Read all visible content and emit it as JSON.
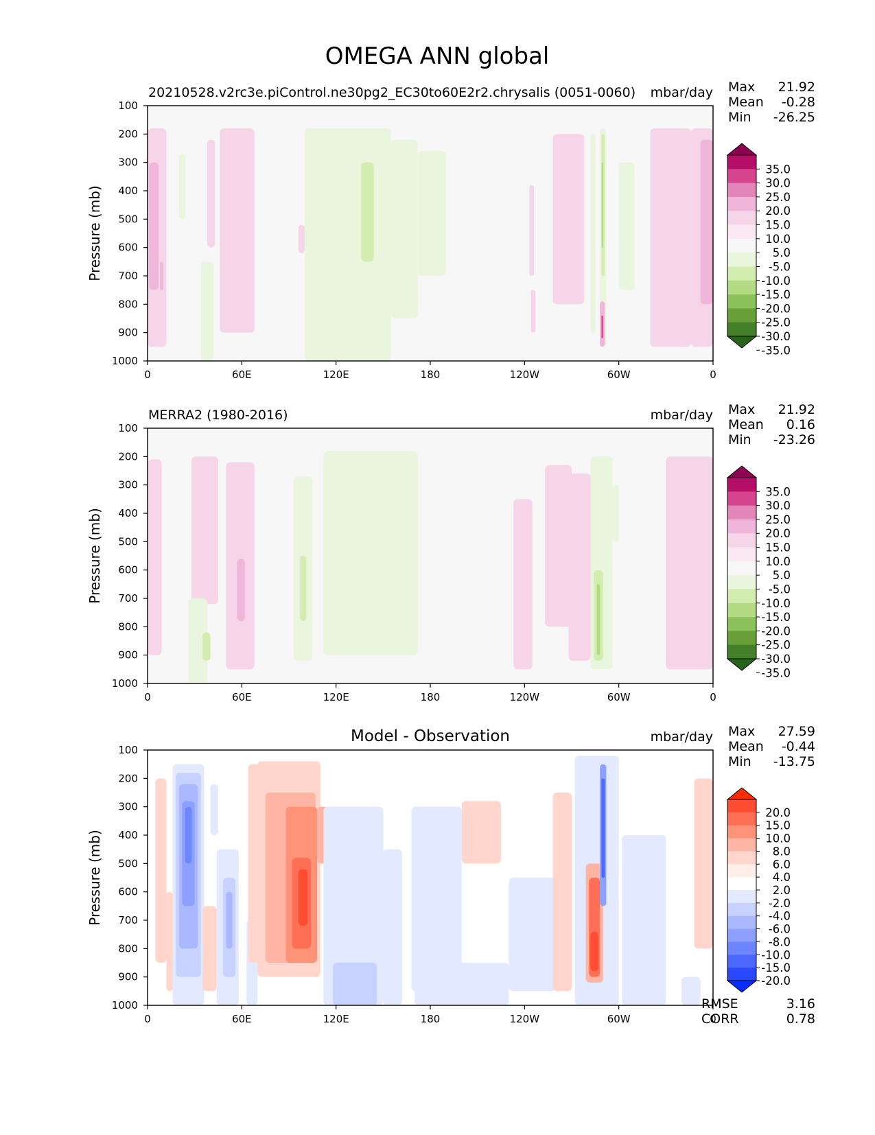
{
  "page": {
    "title": "OMEGA ANN global"
  },
  "palettes": {
    "pink_green": [
      "#8e0152",
      "#b50f6a",
      "#d6438e",
      "#e285b8",
      "#f0b6da",
      "#f6d5e9",
      "#f9e8f1",
      "#f7f7f7",
      "#eaf5dd",
      "#d3ecb0",
      "#b2db84",
      "#8cc25b",
      "#689f38",
      "#44802a",
      "#276419"
    ],
    "red_blue": [
      "#ff2a00",
      "#ff4d33",
      "#ff6f55",
      "#ff9377",
      "#ffb5a3",
      "#ffd5cc",
      "#ffeee9",
      "#ffffff",
      "#e3e9ff",
      "#c8d2ff",
      "#aab8ff",
      "#8da0ff",
      "#6d85ff",
      "#4d68ff",
      "#2a48ff",
      "#0a2dff"
    ]
  },
  "chart_data": [
    {
      "type": "heatmap",
      "title": "",
      "subtitle_left": "20210528.v2rc3e.piControl.ne30pg2_EC30to60E2r2.chrysalis (0051-0060)",
      "units": "mbar/day",
      "ylabel": "Pressure (mb)",
      "xlabel": "",
      "x_ticks": [
        "0",
        "60E",
        "120E",
        "180",
        "120W",
        "60W",
        "0"
      ],
      "y_ticks": [
        "100",
        "200",
        "300",
        "400",
        "500",
        "600",
        "700",
        "800",
        "900",
        "1000"
      ],
      "ylim": [
        1000,
        100
      ],
      "xlim": [
        0,
        360
      ],
      "stats": {
        "Max": "21.92",
        "Mean": "-0.28",
        "Min": "-26.25"
      },
      "colorbar": {
        "palette": "pink_green",
        "extend": "both",
        "labels": [
          "35.0",
          "30.0",
          "25.0",
          "20.0",
          "15.0",
          "10.0",
          "5.0",
          "-5.0",
          "-10.0",
          "-15.0",
          "-20.0",
          "-25.0",
          "-30.0",
          "-35.0"
        ]
      },
      "regions": [
        {
          "lon": [
            0,
            12
          ],
          "p": [
            180,
            950
          ],
          "level": 10
        },
        {
          "lon": [
            1,
            7
          ],
          "p": [
            300,
            750
          ],
          "level": 15
        },
        {
          "lon": [
            8,
            10
          ],
          "p": [
            650,
            750
          ],
          "level": 15
        },
        {
          "lon": [
            38,
            43
          ],
          "p": [
            220,
            600
          ],
          "level": 10
        },
        {
          "lon": [
            46,
            68
          ],
          "p": [
            180,
            900
          ],
          "level": 10
        },
        {
          "lon": [
            64,
            68
          ],
          "p": [
            500,
            900
          ],
          "level": 10
        },
        {
          "lon": [
            20,
            24
          ],
          "p": [
            270,
            500
          ],
          "level": -10
        },
        {
          "lon": [
            34,
            42
          ],
          "p": [
            650,
            1000
          ],
          "level": -10
        },
        {
          "lon": [
            100,
            155
          ],
          "p": [
            180,
            1000
          ],
          "level": -10
        },
        {
          "lon": [
            155,
            172
          ],
          "p": [
            220,
            850
          ],
          "level": -10
        },
        {
          "lon": [
            172,
            190
          ],
          "p": [
            260,
            700
          ],
          "level": -10
        },
        {
          "lon": [
            136,
            144
          ],
          "p": [
            300,
            650
          ],
          "level": -15
        },
        {
          "lon": [
            100,
            102
          ],
          "p": [
            230,
            500
          ],
          "level": -10
        },
        {
          "lon": [
            96,
            100
          ],
          "p": [
            520,
            620
          ],
          "level": 10
        },
        {
          "lon": [
            258,
            278
          ],
          "p": [
            200,
            800
          ],
          "level": 10
        },
        {
          "lon": [
            243,
            246
          ],
          "p": [
            380,
            700
          ],
          "level": 10
        },
        {
          "lon": [
            244,
            247
          ],
          "p": [
            750,
            900
          ],
          "level": 10
        },
        {
          "lon": [
            282,
            285
          ],
          "p": [
            200,
            900
          ],
          "level": -10
        },
        {
          "lon": [
            288,
            292
          ],
          "p": [
            180,
            950
          ],
          "level": -10
        },
        {
          "lon": [
            289,
            291
          ],
          "p": [
            200,
            700
          ],
          "level": -15
        },
        {
          "lon": [
            289,
            290
          ],
          "p": [
            300,
            600
          ],
          "level": -20
        },
        {
          "lon": [
            288,
            291
          ],
          "p": [
            790,
            950
          ],
          "level": 15
        },
        {
          "lon": [
            289,
            290
          ],
          "p": [
            840,
            920
          ],
          "level": 25
        },
        {
          "lon": [
            300,
            310
          ],
          "p": [
            300,
            750
          ],
          "level": -10
        },
        {
          "lon": [
            320,
            346
          ],
          "p": [
            180,
            950
          ],
          "level": 10
        },
        {
          "lon": [
            346,
            360
          ],
          "p": [
            180,
            950
          ],
          "level": 10
        },
        {
          "lon": [
            352,
            360
          ],
          "p": [
            220,
            800
          ],
          "level": 15
        }
      ]
    },
    {
      "type": "heatmap",
      "title": "",
      "subtitle_left": "MERRA2 (1980-2016)",
      "units": "mbar/day",
      "ylabel": "Pressure (mb)",
      "xlabel": "",
      "x_ticks": [
        "0",
        "60E",
        "120E",
        "180",
        "120W",
        "60W",
        "0"
      ],
      "y_ticks": [
        "100",
        "200",
        "300",
        "400",
        "500",
        "600",
        "700",
        "800",
        "900",
        "1000"
      ],
      "ylim": [
        1000,
        100
      ],
      "xlim": [
        0,
        360
      ],
      "stats": {
        "Max": "21.92",
        "Mean": "0.16",
        "Min": "-23.26"
      },
      "colorbar": {
        "palette": "pink_green",
        "extend": "both",
        "labels": [
          "35.0",
          "30.0",
          "25.0",
          "20.0",
          "15.0",
          "10.0",
          "5.0",
          "-5.0",
          "-10.0",
          "-15.0",
          "-20.0",
          "-25.0",
          "-30.0",
          "-35.0"
        ]
      },
      "regions": [
        {
          "lon": [
            0,
            9
          ],
          "p": [
            210,
            900
          ],
          "level": 10
        },
        {
          "lon": [
            28,
            45
          ],
          "p": [
            200,
            720
          ],
          "level": 10
        },
        {
          "lon": [
            50,
            68
          ],
          "p": [
            220,
            950
          ],
          "level": 10
        },
        {
          "lon": [
            57,
            62
          ],
          "p": [
            560,
            780
          ],
          "level": 15
        },
        {
          "lon": [
            26,
            38
          ],
          "p": [
            700,
            1000
          ],
          "level": -10
        },
        {
          "lon": [
            35,
            40
          ],
          "p": [
            820,
            920
          ],
          "level": -15
        },
        {
          "lon": [
            93,
            105
          ],
          "p": [
            270,
            920
          ],
          "level": -10
        },
        {
          "lon": [
            97,
            101
          ],
          "p": [
            550,
            780
          ],
          "level": -15
        },
        {
          "lon": [
            112,
            172
          ],
          "p": [
            180,
            900
          ],
          "level": -10
        },
        {
          "lon": [
            233,
            245
          ],
          "p": [
            350,
            950
          ],
          "level": 10
        },
        {
          "lon": [
            253,
            270
          ],
          "p": [
            230,
            800
          ],
          "level": 10
        },
        {
          "lon": [
            268,
            282
          ],
          "p": [
            260,
            920
          ],
          "level": 10
        },
        {
          "lon": [
            282,
            296
          ],
          "p": [
            200,
            950
          ],
          "level": -10
        },
        {
          "lon": [
            284,
            290
          ],
          "p": [
            600,
            920
          ],
          "level": -15
        },
        {
          "lon": [
            286,
            288
          ],
          "p": [
            650,
            900
          ],
          "level": -20
        },
        {
          "lon": [
            296,
            300
          ],
          "p": [
            300,
            500
          ],
          "level": -10
        },
        {
          "lon": [
            330,
            360
          ],
          "p": [
            200,
            950
          ],
          "level": 10
        }
      ]
    },
    {
      "type": "heatmap",
      "title": "Model - Observation",
      "subtitle_left": "",
      "units": "mbar/day",
      "ylabel": "Pressure (mb)",
      "xlabel": "",
      "x_ticks": [
        "0",
        "60E",
        "120E",
        "180",
        "120W",
        "60W",
        "0"
      ],
      "y_ticks": [
        "100",
        "200",
        "300",
        "400",
        "500",
        "600",
        "700",
        "800",
        "900",
        "1000"
      ],
      "ylim": [
        1000,
        100
      ],
      "xlim": [
        0,
        360
      ],
      "stats": {
        "Max": "27.59",
        "Mean": "-0.44",
        "Min": "-13.75"
      },
      "metrics": {
        "RMSE": "3.16",
        "CORR": "0.78"
      },
      "colorbar": {
        "palette": "red_blue",
        "extend": "both",
        "labels": [
          "20.0",
          "15.0",
          "10.0",
          "8.0",
          "6.0",
          "4.0",
          "2.0",
          "-2.0",
          "-4.0",
          "-6.0",
          "-8.0",
          "-10.0",
          "-15.0",
          "-20.0"
        ]
      },
      "regions": [
        {
          "lon": [
            5,
            12
          ],
          "p": [
            200,
            850
          ],
          "level": 4
        },
        {
          "lon": [
            12,
            16
          ],
          "p": [
            600,
            950
          ],
          "level": 4
        },
        {
          "lon": [
            16,
            36
          ],
          "p": [
            150,
            1000
          ],
          "level": -2
        },
        {
          "lon": [
            18,
            34
          ],
          "p": [
            180,
            900
          ],
          "level": -4
        },
        {
          "lon": [
            20,
            32
          ],
          "p": [
            220,
            800
          ],
          "level": -6
        },
        {
          "lon": [
            22,
            30
          ],
          "p": [
            280,
            650
          ],
          "level": -8
        },
        {
          "lon": [
            24,
            28
          ],
          "p": [
            300,
            500
          ],
          "level": -10
        },
        {
          "lon": [
            35,
            44
          ],
          "p": [
            650,
            950
          ],
          "level": 4
        },
        {
          "lon": [
            40,
            45
          ],
          "p": [
            220,
            400
          ],
          "level": -2
        },
        {
          "lon": [
            44,
            58
          ],
          "p": [
            450,
            1000
          ],
          "level": -2
        },
        {
          "lon": [
            48,
            56
          ],
          "p": [
            550,
            900
          ],
          "level": -4
        },
        {
          "lon": [
            50,
            54
          ],
          "p": [
            600,
            800
          ],
          "level": -6
        },
        {
          "lon": [
            63,
            70
          ],
          "p": [
            700,
            1000
          ],
          "level": -2
        },
        {
          "lon": [
            64,
            80
          ],
          "p": [
            150,
            850
          ],
          "level": 4
        },
        {
          "lon": [
            70,
            110
          ],
          "p": [
            140,
            900
          ],
          "level": 4
        },
        {
          "lon": [
            75,
            107
          ],
          "p": [
            250,
            850
          ],
          "level": 6
        },
        {
          "lon": [
            88,
            108
          ],
          "p": [
            300,
            850
          ],
          "level": 8
        },
        {
          "lon": [
            92,
            104
          ],
          "p": [
            480,
            800
          ],
          "level": 10
        },
        {
          "lon": [
            96,
            102
          ],
          "p": [
            520,
            720
          ],
          "level": 15
        },
        {
          "lon": [
            108,
            115
          ],
          "p": [
            300,
            500
          ],
          "level": 6
        },
        {
          "lon": [
            112,
            150
          ],
          "p": [
            300,
            1000
          ],
          "level": -2
        },
        {
          "lon": [
            118,
            146
          ],
          "p": [
            850,
            1000
          ],
          "level": -4
        },
        {
          "lon": [
            150,
            162
          ],
          "p": [
            450,
            1000
          ],
          "level": -2
        },
        {
          "lon": [
            168,
            200
          ],
          "p": [
            300,
            950
          ],
          "level": -2
        },
        {
          "lon": [
            180,
            196
          ],
          "p": [
            320,
            700
          ],
          "level": -2
        },
        {
          "lon": [
            170,
            230
          ],
          "p": [
            850,
            1000
          ],
          "level": -2
        },
        {
          "lon": [
            200,
            225
          ],
          "p": [
            280,
            500
          ],
          "level": 4
        },
        {
          "lon": [
            230,
            260
          ],
          "p": [
            550,
            950
          ],
          "level": -2
        },
        {
          "lon": [
            258,
            270
          ],
          "p": [
            250,
            950
          ],
          "level": 4
        },
        {
          "lon": [
            272,
            300
          ],
          "p": [
            120,
            1000
          ],
          "level": -2
        },
        {
          "lon": [
            279,
            290
          ],
          "p": [
            500,
            920
          ],
          "level": 6
        },
        {
          "lon": [
            281,
            288
          ],
          "p": [
            550,
            900
          ],
          "level": 10
        },
        {
          "lon": [
            282,
            287
          ],
          "p": [
            740,
            880
          ],
          "level": 15
        },
        {
          "lon": [
            288,
            292
          ],
          "p": [
            150,
            650
          ],
          "level": -8
        },
        {
          "lon": [
            289,
            291
          ],
          "p": [
            200,
            550
          ],
          "level": -15
        },
        {
          "lon": [
            302,
            330
          ],
          "p": [
            400,
            1000
          ],
          "level": -2
        },
        {
          "lon": [
            340,
            352
          ],
          "p": [
            900,
            1000
          ],
          "level": -2
        },
        {
          "lon": [
            348,
            360
          ],
          "p": [
            200,
            800
          ],
          "level": 4
        }
      ]
    }
  ]
}
